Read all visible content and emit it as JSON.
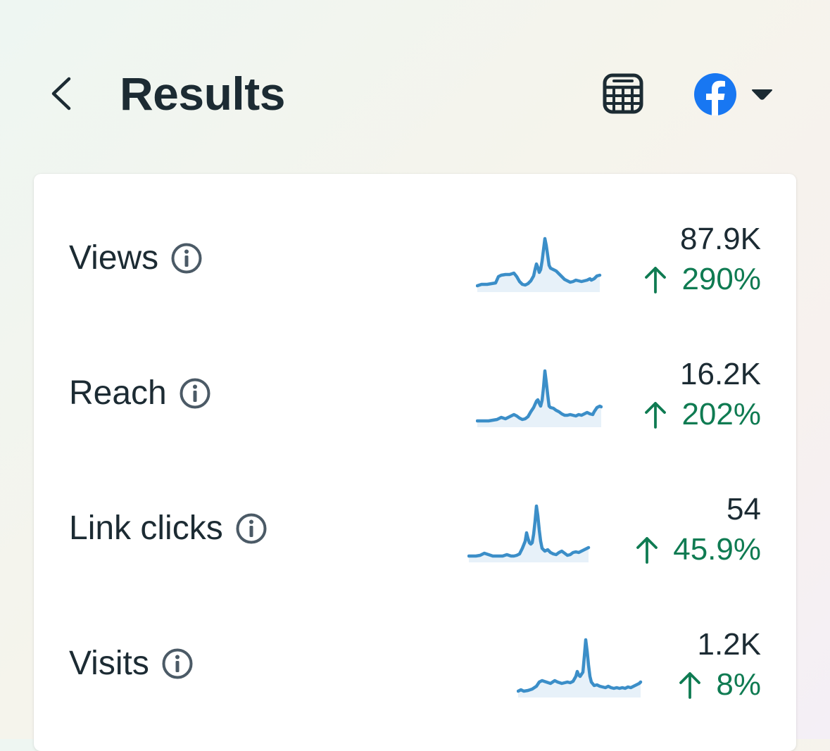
{
  "header": {
    "title": "Results",
    "back_icon": "chevron-left-icon",
    "calculator_icon": "calculator-icon",
    "platform_icon": "facebook-logo-icon",
    "dropdown_icon": "caret-down-icon"
  },
  "colors": {
    "brand_facebook": "#1877f2",
    "positive": "#0f7b52",
    "sparkline": "#3b8ec8",
    "text": "#1c2b33"
  },
  "metrics": [
    {
      "label": "Views",
      "value": "87.9K",
      "change": "290%",
      "trend": "up"
    },
    {
      "label": "Reach",
      "value": "16.2K",
      "change": "202%",
      "trend": "up"
    },
    {
      "label": "Link clicks",
      "value": "54",
      "change": "45.9%",
      "trend": "up"
    },
    {
      "label": "Visits",
      "value": "1.2K",
      "change": "8%",
      "trend": "up"
    }
  ]
}
